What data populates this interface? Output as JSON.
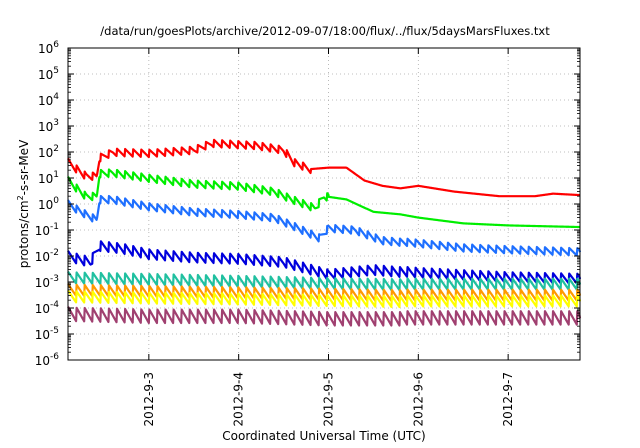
{
  "chart_data": {
    "type": "line",
    "title": "/data/run/goesPlots/archive/2012-09-07/18:00/flux/../flux/5daysMarsFluxes.txt",
    "xlabel": "Coordinated Universal Time (UTC)",
    "ylabel": {
      "base": "protons/cm",
      "sup": "2",
      "rest": "-s-sr-MeV"
    },
    "yscale": "log",
    "ylim_exp": [
      -6,
      6
    ],
    "y_ticks": [
      {
        "base": "10",
        "exp": "6"
      },
      {
        "base": "10",
        "exp": "5"
      },
      {
        "base": "10",
        "exp": "4"
      },
      {
        "base": "10",
        "exp": "3"
      },
      {
        "base": "10",
        "exp": "2"
      },
      {
        "base": "10",
        "exp": "1"
      },
      {
        "base": "10",
        "exp": "0"
      },
      {
        "base": "10",
        "exp": "-1"
      },
      {
        "base": "10",
        "exp": "-2"
      },
      {
        "base": "10",
        "exp": "-3"
      },
      {
        "base": "10",
        "exp": "-4"
      },
      {
        "base": "10",
        "exp": "-5"
      },
      {
        "base": "10",
        "exp": "-6"
      }
    ],
    "xlim_days": [
      2.1,
      7.8
    ],
    "x_ticks": [
      {
        "label": "2012-9-3",
        "day": 3
      },
      {
        "label": "2012-9-4",
        "day": 4
      },
      {
        "label": "2012-9-5",
        "day": 5
      },
      {
        "label": "2012-9-6",
        "day": 6
      },
      {
        "label": "2012-9-7",
        "day": 7
      }
    ],
    "grid": true,
    "series": [
      {
        "color": "#ff0000",
        "sawtooth": {
          "amp_log10": 0.3,
          "period_days": 0.09,
          "until_day": 4.8
        },
        "points": [
          [
            2.1,
            40
          ],
          [
            2.3,
            12
          ],
          [
            2.42,
            12
          ],
          [
            2.45,
            60
          ],
          [
            2.6,
            100
          ],
          [
            3.0,
            90
          ],
          [
            3.5,
            120
          ],
          [
            3.7,
            220
          ],
          [
            4.2,
            180
          ],
          [
            4.5,
            120
          ],
          [
            4.62,
            40
          ],
          [
            4.8,
            22
          ],
          [
            5.0,
            25
          ],
          [
            5.2,
            25
          ],
          [
            5.4,
            8
          ],
          [
            5.6,
            5
          ],
          [
            5.8,
            4
          ],
          [
            6.0,
            5
          ],
          [
            6.4,
            3
          ],
          [
            6.9,
            2
          ],
          [
            7.3,
            2
          ],
          [
            7.5,
            2.5
          ],
          [
            7.8,
            2.2
          ]
        ]
      },
      {
        "color": "#00ee00",
        "sawtooth": {
          "amp_log10": 0.3,
          "period_days": 0.09,
          "until_day": 5.0
        },
        "points": [
          [
            2.1,
            8
          ],
          [
            2.3,
            2
          ],
          [
            2.42,
            2
          ],
          [
            2.45,
            15
          ],
          [
            2.6,
            16
          ],
          [
            3.0,
            10
          ],
          [
            3.5,
            6
          ],
          [
            4.0,
            5
          ],
          [
            4.4,
            3
          ],
          [
            4.6,
            1.5
          ],
          [
            4.85,
            0.7
          ],
          [
            4.95,
            2
          ],
          [
            5.2,
            1.5
          ],
          [
            5.5,
            0.5
          ],
          [
            5.8,
            0.4
          ],
          [
            6.0,
            0.3
          ],
          [
            6.5,
            0.18
          ],
          [
            7.0,
            0.15
          ],
          [
            7.8,
            0.13
          ]
        ]
      },
      {
        "color": "#1e6fff",
        "sawtooth": {
          "amp_log10": 0.3,
          "period_days": 0.09,
          "until_day": 7.8
        },
        "points": [
          [
            2.1,
            1
          ],
          [
            2.3,
            0.4
          ],
          [
            2.42,
            0.25
          ],
          [
            2.45,
            1.5
          ],
          [
            2.6,
            1.5
          ],
          [
            3.0,
            0.8
          ],
          [
            3.5,
            0.5
          ],
          [
            4.0,
            0.4
          ],
          [
            4.4,
            0.3
          ],
          [
            4.6,
            0.15
          ],
          [
            4.9,
            0.05
          ],
          [
            5.0,
            0.12
          ],
          [
            5.3,
            0.1
          ],
          [
            5.6,
            0.04
          ],
          [
            6.0,
            0.03
          ],
          [
            6.5,
            0.02
          ],
          [
            7.0,
            0.017
          ],
          [
            7.8,
            0.014
          ]
        ]
      },
      {
        "color": "#0000dd",
        "sawtooth": {
          "amp_log10": 0.4,
          "period_days": 0.09,
          "until_day": 7.8
        },
        "points": [
          [
            2.1,
            0.01
          ],
          [
            2.35,
            0.006
          ],
          [
            2.45,
            0.025
          ],
          [
            2.7,
            0.02
          ],
          [
            3.0,
            0.012
          ],
          [
            3.5,
            0.009
          ],
          [
            4.0,
            0.008
          ],
          [
            4.5,
            0.006
          ],
          [
            5.0,
            0.002
          ],
          [
            5.5,
            0.003
          ],
          [
            6.0,
            0.0022
          ],
          [
            6.5,
            0.0018
          ],
          [
            7.0,
            0.0015
          ],
          [
            7.8,
            0.0013
          ]
        ]
      },
      {
        "color": "#20c0a0",
        "sawtooth": {
          "amp_log10": 0.45,
          "period_days": 0.09,
          "until_day": 7.8
        },
        "points": [
          [
            2.1,
            0.0015
          ],
          [
            3.0,
            0.0013
          ],
          [
            4.0,
            0.0011
          ],
          [
            5.0,
            0.0009
          ],
          [
            6.0,
            0.0008
          ],
          [
            7.0,
            0.0008
          ],
          [
            7.8,
            0.0008
          ]
        ]
      },
      {
        "color": "#ff9900",
        "sawtooth": {
          "amp_log10": 0.45,
          "period_days": 0.09,
          "until_day": 7.8
        },
        "points": [
          [
            2.1,
            0.0005
          ],
          [
            3.0,
            0.00045
          ],
          [
            4.0,
            0.0004
          ],
          [
            5.0,
            0.00035
          ],
          [
            6.0,
            0.0003
          ],
          [
            7.0,
            0.0003
          ],
          [
            7.8,
            0.0003
          ]
        ]
      },
      {
        "color": "#ffff00",
        "sawtooth": {
          "amp_log10": 0.45,
          "period_days": 0.09,
          "until_day": 7.8
        },
        "points": [
          [
            2.1,
            0.00028
          ],
          [
            3.0,
            0.00025
          ],
          [
            4.0,
            0.00023
          ],
          [
            5.0,
            0.0002
          ],
          [
            6.0,
            0.00018
          ],
          [
            7.0,
            0.00018
          ],
          [
            7.8,
            0.00018
          ]
        ]
      },
      {
        "color": "#a04070",
        "sawtooth": {
          "amp_log10": 0.55,
          "period_days": 0.09,
          "until_day": 7.8
        },
        "points": [
          [
            2.1,
            6e-05
          ],
          [
            3.0,
            5e-05
          ],
          [
            4.0,
            5e-05
          ],
          [
            5.0,
            4e-05
          ],
          [
            6.0,
            4e-05
          ],
          [
            7.0,
            4e-05
          ],
          [
            7.8,
            4e-05
          ]
        ]
      }
    ]
  }
}
